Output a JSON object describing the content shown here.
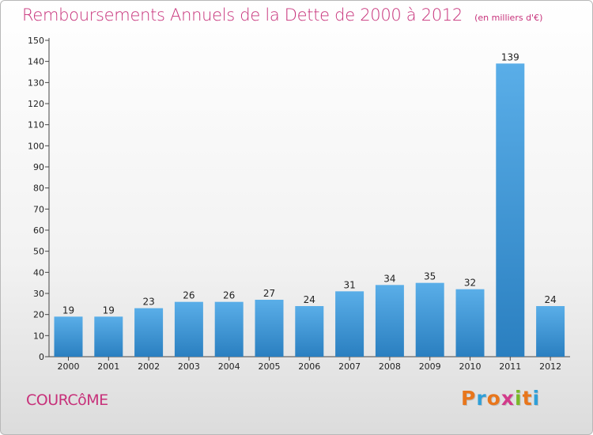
{
  "header": {
    "title": "Remboursements Annuels de la Dette de 2000 à 2012",
    "unit": "(en milliers d'€)"
  },
  "footer": {
    "commune": "COURCôME",
    "logo_text": "Proxiti",
    "logo_letter_colors": [
      "#e8761c",
      "#2f9fd8",
      "#e8761c",
      "#d23a8a",
      "#7ab828",
      "#e8761c",
      "#2f9fd8"
    ]
  },
  "chart_data": {
    "type": "bar",
    "title": "Remboursements Annuels de la Dette de 2000 à 2012",
    "unit": "(en milliers d'€)",
    "xlabel": "",
    "ylabel": "",
    "categories": [
      "2000",
      "2001",
      "2002",
      "2003",
      "2004",
      "2005",
      "2006",
      "2007",
      "2008",
      "2009",
      "2010",
      "2011",
      "2012"
    ],
    "values": [
      19,
      19,
      23,
      26,
      26,
      27,
      24,
      31,
      34,
      35,
      32,
      139,
      24
    ],
    "data_labels": [
      "19",
      "19",
      "23",
      "26",
      "26",
      "27",
      "24",
      "31",
      "34",
      "35",
      "32",
      "139",
      "24"
    ],
    "ylim": [
      0,
      150
    ],
    "yticks": [
      0,
      10,
      20,
      30,
      40,
      50,
      60,
      70,
      80,
      90,
      100,
      110,
      120,
      130,
      140,
      150
    ],
    "grid": false,
    "legend": "none",
    "colors": {
      "bar_light": "#5aaee8",
      "bar_dark": "#2a7fc0",
      "axis": "#444444",
      "text": "#222222",
      "accent": "#c7317a"
    }
  }
}
